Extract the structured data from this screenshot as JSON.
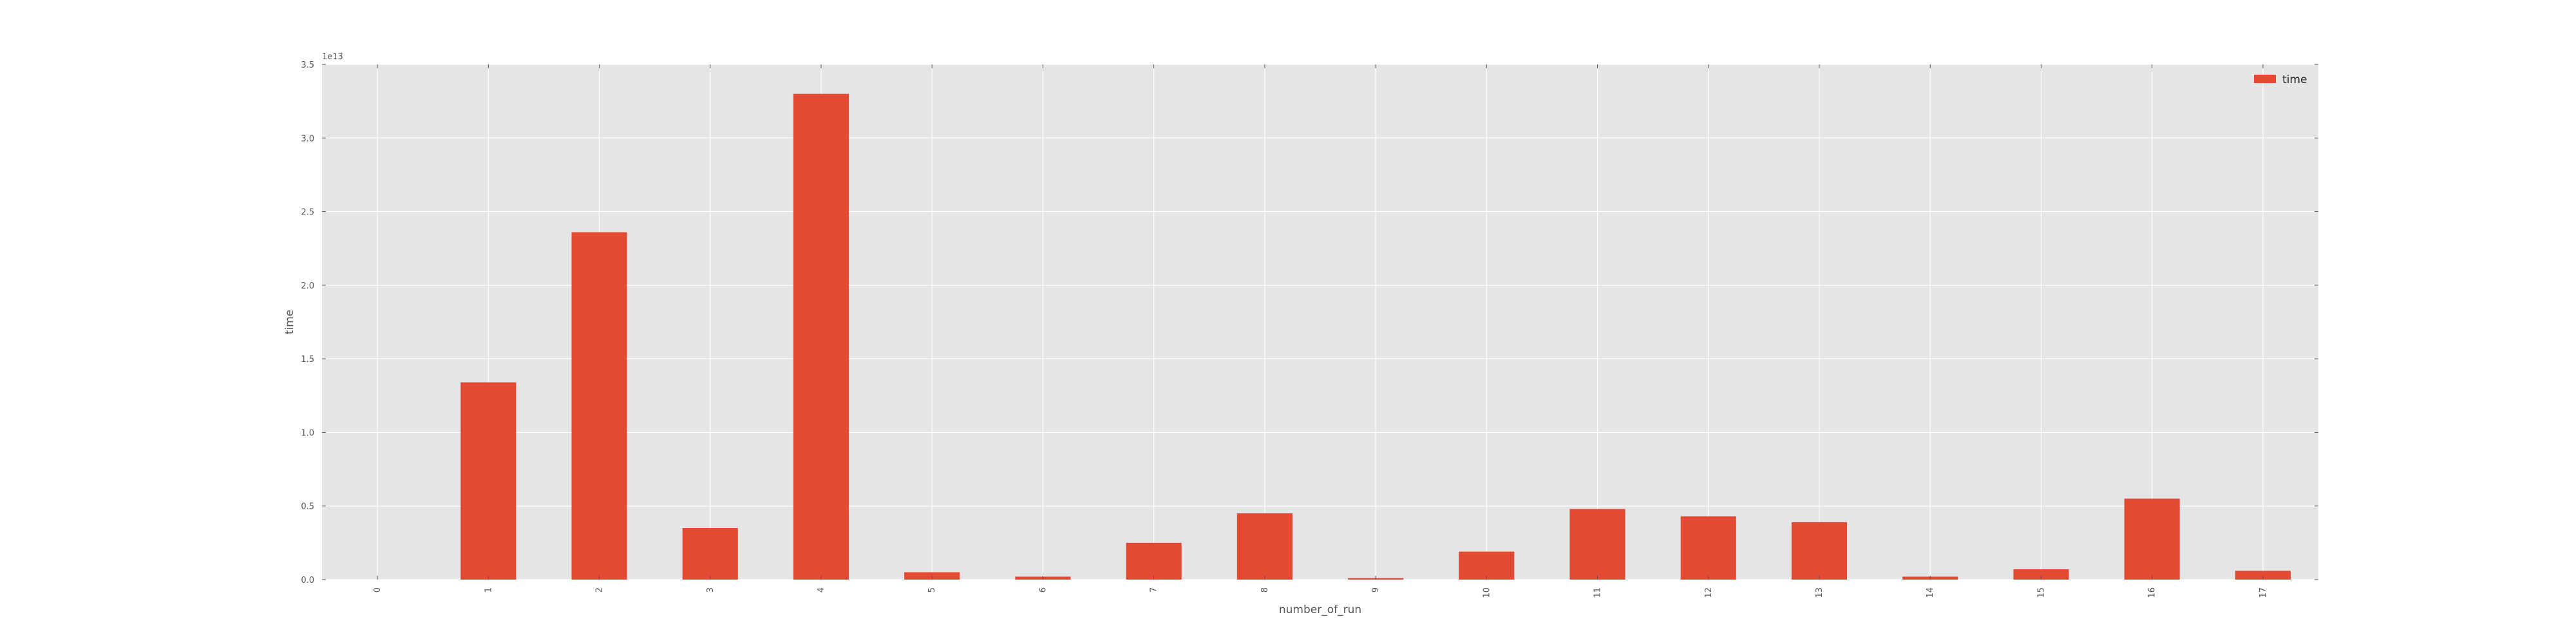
{
  "chart_data": {
    "type": "bar",
    "categories": [
      "0",
      "1",
      "2",
      "3",
      "4",
      "5",
      "6",
      "7",
      "8",
      "9",
      "10",
      "11",
      "12",
      "13",
      "14",
      "15",
      "16",
      "17"
    ],
    "series": [
      {
        "name": "time",
        "color": "#e24a33",
        "values": [
          0.0,
          1.34,
          2.36,
          0.35,
          3.3,
          0.05,
          0.02,
          0.25,
          0.45,
          0.01,
          0.19,
          0.48,
          0.43,
          0.39,
          0.02,
          0.07,
          0.55,
          0.06
        ]
      }
    ],
    "xlabel": "number_of_run",
    "ylabel": "time",
    "ylim": [
      0,
      3.5
    ],
    "yticks": [
      "0.0",
      "0.5",
      "1.0",
      "1.5",
      "2.0",
      "2.5",
      "3.0",
      "3.5"
    ],
    "y_scale_label": "1e13",
    "grid": true,
    "legend_position": "top-right",
    "background_color": "#e5e5e5",
    "grid_color": "#ffffff"
  }
}
